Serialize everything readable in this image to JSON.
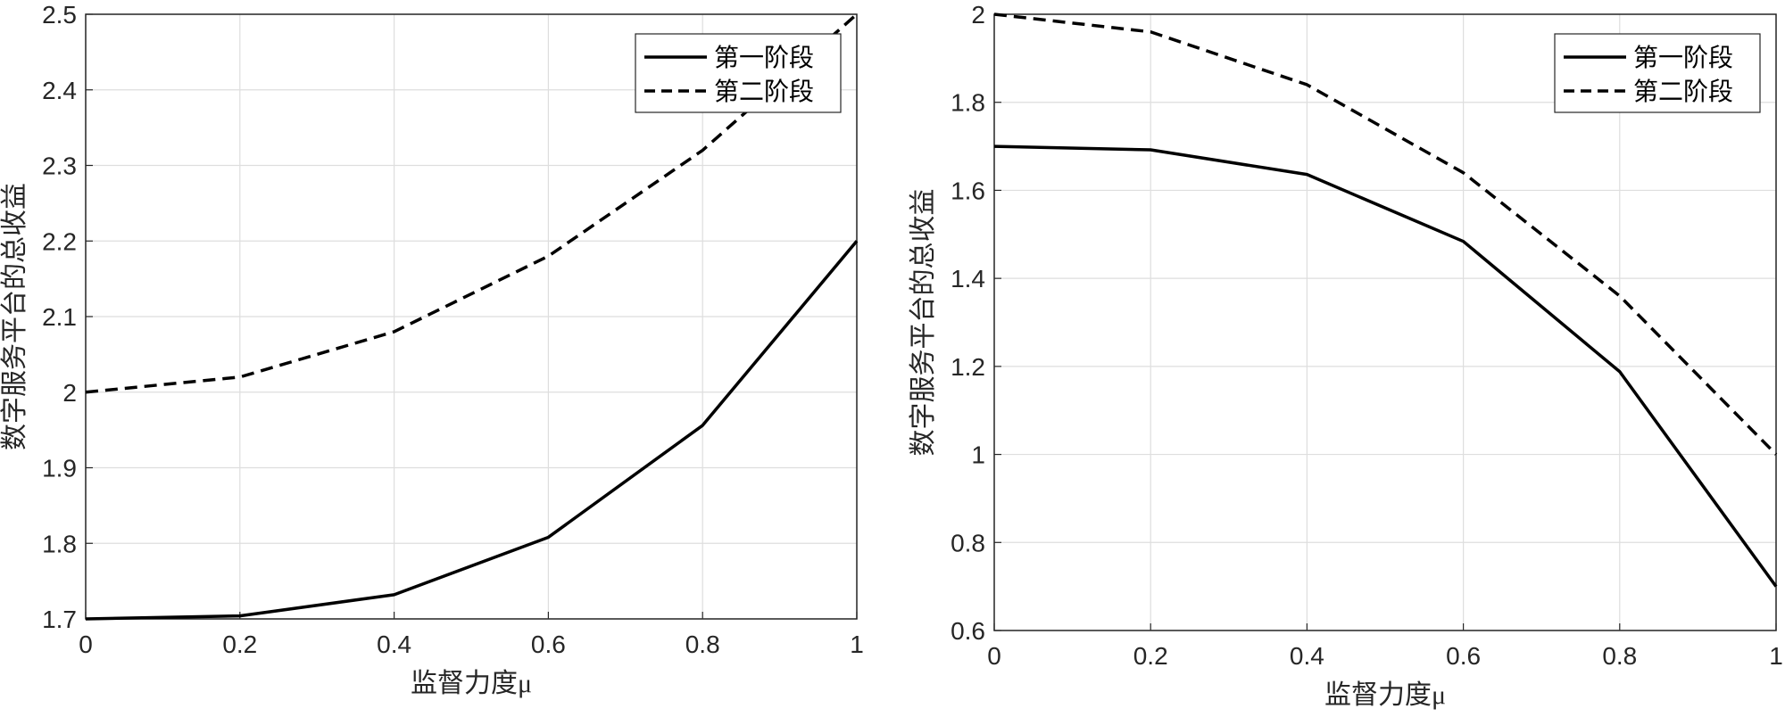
{
  "chart_data": [
    {
      "type": "line",
      "xlabel": "监督力度μ",
      "ylabel": "数字服务平台的总收益",
      "xlim": [
        0,
        1
      ],
      "ylim": [
        1.7,
        2.5
      ],
      "xticks": [
        "0",
        "0.2",
        "0.4",
        "0.6",
        "0.8",
        "1"
      ],
      "yticks": [
        "1.7",
        "1.8",
        "1.9",
        "2",
        "2.1",
        "2.2",
        "2.3",
        "2.4",
        "2.5"
      ],
      "grid": true,
      "legend_position": "top-right",
      "x": [
        0,
        0.2,
        0.4,
        0.6,
        0.8,
        1
      ],
      "series": [
        {
          "name": "第一阶段",
          "style": "solid",
          "values": [
            1.7,
            1.704,
            1.732,
            1.808,
            1.956,
            2.2
          ]
        },
        {
          "name": "第二阶段",
          "style": "dashed",
          "values": [
            2.0,
            2.02,
            2.08,
            2.18,
            2.32,
            2.5
          ]
        }
      ]
    },
    {
      "type": "line",
      "xlabel": "监督力度μ",
      "ylabel": "数字服务平台的总收益",
      "xlim": [
        0,
        1
      ],
      "ylim": [
        0.6,
        2
      ],
      "xticks": [
        "0",
        "0.2",
        "0.4",
        "0.6",
        "0.8",
        "1"
      ],
      "yticks": [
        "0.6",
        "0.8",
        "1",
        "1.2",
        "1.4",
        "1.6",
        "1.8",
        "2"
      ],
      "grid": true,
      "legend_position": "top-right",
      "x": [
        0,
        0.2,
        0.4,
        0.6,
        0.8,
        1
      ],
      "series": [
        {
          "name": "第一阶段",
          "style": "solid",
          "values": [
            1.7,
            1.692,
            1.636,
            1.484,
            1.188,
            0.7
          ]
        },
        {
          "name": "第二阶段",
          "style": "dashed",
          "values": [
            2.0,
            1.96,
            1.84,
            1.64,
            1.36,
            1.0
          ]
        }
      ]
    }
  ]
}
